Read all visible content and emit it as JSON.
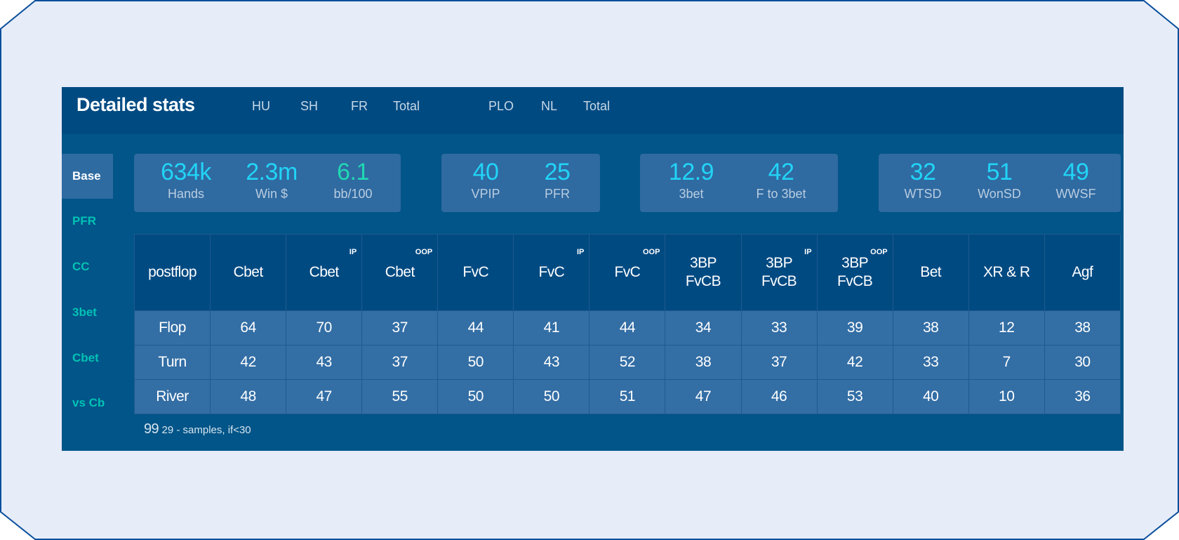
{
  "header": {
    "title": "Detailed stats",
    "tabs": [
      "HU",
      "SH",
      "FR",
      "Total",
      "PLO",
      "NL",
      "Total"
    ]
  },
  "sidebar": {
    "items": [
      {
        "label": "Base",
        "active": true
      },
      {
        "label": "PFR",
        "active": false
      },
      {
        "label": "CC",
        "active": false
      },
      {
        "label": "3bet",
        "active": false
      },
      {
        "label": "Cbet",
        "active": false
      },
      {
        "label": "vs Cb",
        "active": false
      }
    ]
  },
  "summary": {
    "hands": {
      "value": "634k",
      "label": "Hands"
    },
    "win": {
      "value": "2.3m",
      "label": "Win $"
    },
    "bb100": {
      "value": "6.1",
      "label": "bb/100"
    },
    "vpip": {
      "value": "40",
      "label": "VPIP"
    },
    "pfr": {
      "value": "25",
      "label": "PFR"
    },
    "threebet": {
      "value": "12.9",
      "label": "3bet"
    },
    "fto3bet": {
      "value": "42",
      "label": "F to 3bet"
    },
    "wtsd": {
      "value": "32",
      "label": "WTSD"
    },
    "wonsd": {
      "value": "51",
      "label": "WonSD"
    },
    "wwsf": {
      "value": "49",
      "label": "WWSF"
    }
  },
  "table": {
    "columns": [
      {
        "line1": "postflop",
        "line2": "",
        "tag": ""
      },
      {
        "line1": "Cbet",
        "line2": "",
        "tag": ""
      },
      {
        "line1": "Cbet",
        "line2": "",
        "tag": "IP"
      },
      {
        "line1": "Cbet",
        "line2": "",
        "tag": "OOP"
      },
      {
        "line1": "FvC",
        "line2": "",
        "tag": ""
      },
      {
        "line1": "FvC",
        "line2": "",
        "tag": "IP"
      },
      {
        "line1": "FvC",
        "line2": "",
        "tag": "OOP"
      },
      {
        "line1": "3BP",
        "line2": "FvCB",
        "tag": ""
      },
      {
        "line1": "3BP",
        "line2": "FvCB",
        "tag": "IP"
      },
      {
        "line1": "3BP",
        "line2": "FvCB",
        "tag": "OOP"
      },
      {
        "line1": "Bet",
        "line2": "",
        "tag": ""
      },
      {
        "line1": "XR & R",
        "line2": "",
        "tag": ""
      },
      {
        "line1": "Agf",
        "line2": "",
        "tag": ""
      }
    ],
    "rows": [
      [
        "Flop",
        "64",
        "70",
        "37",
        "44",
        "41",
        "44",
        "34",
        "33",
        "39",
        "38",
        "12",
        "38"
      ],
      [
        "Turn",
        "42",
        "43",
        "37",
        "50",
        "43",
        "52",
        "38",
        "37",
        "42",
        "33",
        "7",
        "30"
      ],
      [
        "River",
        "48",
        "47",
        "55",
        "50",
        "50",
        "51",
        "47",
        "46",
        "53",
        "40",
        "10",
        "36"
      ]
    ]
  },
  "footnote": {
    "big": "99",
    "small": "29 - samples, if<30"
  },
  "colors": {
    "panel": "#015588",
    "header": "#004a82",
    "cell": "#336ea5",
    "stat_value": "#22d4f6",
    "stat_positive": "#20d8b2",
    "sidebar_link": "#00c2b5",
    "frame_bg": "#e6ecf8",
    "frame_border": "#0a4f9c"
  }
}
